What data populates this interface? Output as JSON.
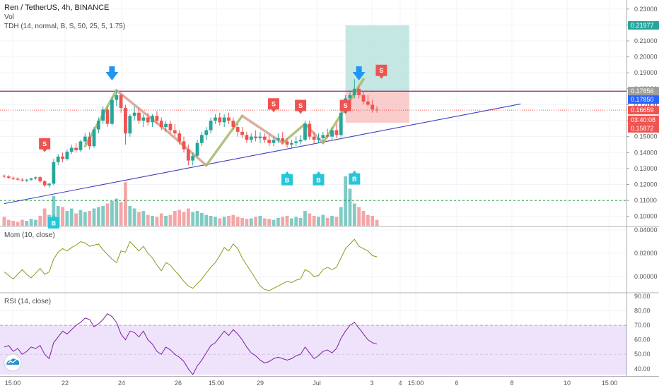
{
  "legend": {
    "main": "Ren / TetherUS, 4h, BINANCE",
    "vol": "Vol",
    "tdh": "TDH (14, normal, B, S, 50, 25, 5, 1.75)",
    "mom": "Mom (10, close)",
    "rsi": "RSI (14, close)"
  },
  "colors": {
    "up": "#26a69a",
    "down": "#ef5350",
    "zigzag_up": "#a4b86a",
    "zigzag_down": "#d6a08e",
    "trend": "#3d3dbf",
    "resistance": "#8e2a6a",
    "sell_tag": "#ef5350",
    "buy_tag": "#26c6da",
    "arrow": "#2196f3",
    "mom_line": "#8a9a1a",
    "rsi_line": "#7b1fa2",
    "rsi_band": "#efe3fb"
  },
  "price_axis": [
    "0.23000",
    "0.22000",
    "0.21000",
    "0.20000",
    "0.19000",
    "0.18000",
    "0.17000",
    "0.16000",
    "0.15000",
    "0.14000",
    "0.13000",
    "0.12000",
    "0.11000",
    "0.10000"
  ],
  "price_tags": [
    {
      "text": "0.21977",
      "color": "#26a69a",
      "value": 0.21977
    },
    {
      "text": "0.17856",
      "color": "#9e9e9e",
      "value": 0.17856
    },
    {
      "text": "0.17850",
      "color": "#2962ff",
      "value": 0.1785
    },
    {
      "text": "0.16659",
      "color": "#ef5350",
      "value": 0.16659
    },
    {
      "text": "03:40:08",
      "color": "#ef5350",
      "value": 0.1605
    },
    {
      "text": "0.15872",
      "color": "#ef5350",
      "value": 0.15872
    }
  ],
  "mom_axis": [
    "0.04000",
    "0.02000",
    "0.00000"
  ],
  "rsi_axis": [
    "90.00",
    "80.00",
    "70.00",
    "60.00",
    "50.00",
    "40.00"
  ],
  "time_axis": [
    "15:00",
    "22",
    "24",
    "26",
    "15:00",
    "29",
    "Jul",
    "3",
    "4",
    "15:00",
    "6",
    "8",
    "10",
    "15:00"
  ],
  "signals": {
    "sell_label": "S",
    "buy_label": "B"
  },
  "chart_data": {
    "type": "candlestick",
    "candles": [
      [
        0.1255,
        0.1262,
        0.124,
        0.125
      ],
      [
        0.125,
        0.1258,
        0.1235,
        0.1242
      ],
      [
        0.1242,
        0.125,
        0.1228,
        0.1236
      ],
      [
        0.1236,
        0.1245,
        0.1225,
        0.123
      ],
      [
        0.123,
        0.124,
        0.1218,
        0.1225
      ],
      [
        0.1225,
        0.1235,
        0.1215,
        0.123
      ],
      [
        0.123,
        0.1242,
        0.1222,
        0.1238
      ],
      [
        0.1238,
        0.125,
        0.123,
        0.1245
      ],
      [
        0.1245,
        0.1255,
        0.121,
        0.122
      ],
      [
        0.122,
        0.1228,
        0.1185,
        0.1195
      ],
      [
        0.1195,
        0.121,
        0.118,
        0.1205
      ],
      [
        0.1205,
        0.136,
        0.1195,
        0.134
      ],
      [
        0.134,
        0.139,
        0.132,
        0.1375
      ],
      [
        0.1375,
        0.14,
        0.134,
        0.136
      ],
      [
        0.136,
        0.142,
        0.135,
        0.1405
      ],
      [
        0.1405,
        0.145,
        0.139,
        0.143
      ],
      [
        0.143,
        0.146,
        0.14,
        0.1415
      ],
      [
        0.1415,
        0.148,
        0.1405,
        0.147
      ],
      [
        0.147,
        0.152,
        0.1455,
        0.15
      ],
      [
        0.15,
        0.153,
        0.142,
        0.144
      ],
      [
        0.144,
        0.156,
        0.143,
        0.1545
      ],
      [
        0.1545,
        0.162,
        0.152,
        0.16
      ],
      [
        0.16,
        0.169,
        0.158,
        0.167
      ],
      [
        0.167,
        0.169,
        0.156,
        0.158
      ],
      [
        0.158,
        0.175,
        0.157,
        0.173
      ],
      [
        0.173,
        0.179,
        0.169,
        0.176
      ],
      [
        0.176,
        0.177,
        0.165,
        0.168
      ],
      [
        0.168,
        0.17,
        0.145,
        0.152
      ],
      [
        0.152,
        0.164,
        0.15,
        0.163
      ],
      [
        0.163,
        0.169,
        0.16,
        0.165
      ],
      [
        0.165,
        0.168,
        0.158,
        0.16
      ],
      [
        0.16,
        0.164,
        0.156,
        0.162
      ],
      [
        0.162,
        0.165,
        0.157,
        0.159
      ],
      [
        0.159,
        0.164,
        0.156,
        0.163
      ],
      [
        0.163,
        0.166,
        0.158,
        0.16
      ],
      [
        0.16,
        0.162,
        0.154,
        0.156
      ],
      [
        0.156,
        0.16,
        0.153,
        0.158
      ],
      [
        0.158,
        0.16,
        0.152,
        0.154
      ],
      [
        0.154,
        0.158,
        0.15,
        0.152
      ],
      [
        0.152,
        0.154,
        0.145,
        0.147
      ],
      [
        0.147,
        0.15,
        0.14,
        0.142
      ],
      [
        0.142,
        0.145,
        0.132,
        0.135
      ],
      [
        0.135,
        0.14,
        0.132,
        0.138
      ],
      [
        0.138,
        0.148,
        0.137,
        0.146
      ],
      [
        0.146,
        0.153,
        0.144,
        0.151
      ],
      [
        0.151,
        0.156,
        0.148,
        0.154
      ],
      [
        0.154,
        0.162,
        0.152,
        0.16
      ],
      [
        0.16,
        0.164,
        0.158,
        0.162
      ],
      [
        0.162,
        0.165,
        0.157,
        0.159
      ],
      [
        0.159,
        0.164,
        0.156,
        0.162
      ],
      [
        0.162,
        0.165,
        0.158,
        0.16
      ],
      [
        0.16,
        0.162,
        0.154,
        0.156
      ],
      [
        0.156,
        0.158,
        0.15,
        0.153
      ],
      [
        0.153,
        0.156,
        0.149,
        0.151
      ],
      [
        0.151,
        0.153,
        0.146,
        0.148
      ],
      [
        0.148,
        0.152,
        0.146,
        0.15
      ],
      [
        0.15,
        0.154,
        0.147,
        0.149
      ],
      [
        0.149,
        0.153,
        0.146,
        0.15
      ],
      [
        0.15,
        0.152,
        0.146,
        0.148
      ],
      [
        0.148,
        0.151,
        0.144,
        0.146
      ],
      [
        0.146,
        0.15,
        0.144,
        0.148
      ],
      [
        0.148,
        0.152,
        0.146,
        0.149
      ],
      [
        0.149,
        0.153,
        0.145,
        0.147
      ],
      [
        0.147,
        0.149,
        0.143,
        0.145
      ],
      [
        0.145,
        0.148,
        0.143,
        0.146
      ],
      [
        0.146,
        0.15,
        0.144,
        0.147
      ],
      [
        0.147,
        0.151,
        0.145,
        0.148
      ],
      [
        0.148,
        0.16,
        0.147,
        0.158
      ],
      [
        0.158,
        0.16,
        0.148,
        0.15
      ],
      [
        0.15,
        0.153,
        0.146,
        0.148
      ],
      [
        0.148,
        0.152,
        0.146,
        0.149
      ],
      [
        0.149,
        0.153,
        0.147,
        0.151
      ],
      [
        0.151,
        0.155,
        0.149,
        0.15
      ],
      [
        0.15,
        0.156,
        0.148,
        0.154
      ],
      [
        0.154,
        0.158,
        0.149,
        0.151
      ],
      [
        0.151,
        0.168,
        0.15,
        0.165
      ],
      [
        0.165,
        0.176,
        0.164,
        0.174
      ],
      [
        0.174,
        0.179,
        0.17,
        0.176
      ],
      [
        0.176,
        0.186,
        0.174,
        0.18
      ],
      [
        0.18,
        0.182,
        0.174,
        0.176
      ],
      [
        0.176,
        0.178,
        0.17,
        0.172
      ],
      [
        0.172,
        0.176,
        0.169,
        0.17
      ],
      [
        0.17,
        0.173,
        0.165,
        0.167
      ],
      [
        0.167,
        0.169,
        0.165,
        0.1666
      ]
    ],
    "volume": [
      0.18,
      0.12,
      0.1,
      0.08,
      0.12,
      0.1,
      0.14,
      0.12,
      0.2,
      0.35,
      0.22,
      0.6,
      0.4,
      0.38,
      0.3,
      0.35,
      0.25,
      0.32,
      0.28,
      0.3,
      0.35,
      0.38,
      0.4,
      0.45,
      0.5,
      0.55,
      0.48,
      0.88,
      0.4,
      0.35,
      0.28,
      0.3,
      0.22,
      0.2,
      0.18,
      0.25,
      0.2,
      0.22,
      0.3,
      0.32,
      0.28,
      0.35,
      0.28,
      0.3,
      0.26,
      0.22,
      0.2,
      0.18,
      0.15,
      0.18,
      0.2,
      0.22,
      0.18,
      0.16,
      0.14,
      0.15,
      0.18,
      0.2,
      0.15,
      0.14,
      0.12,
      0.16,
      0.18,
      0.2,
      0.15,
      0.18,
      0.16,
      0.3,
      0.25,
      0.2,
      0.18,
      0.22,
      0.16,
      0.2,
      0.18,
      0.38,
      1.0,
      0.75,
      0.45,
      0.38,
      0.3,
      0.22,
      0.2,
      0.12
    ],
    "momentum": [
      0.004,
      0.001,
      -0.002,
      0.002,
      0.006,
      0.002,
      -0.001,
      0.003,
      0.007,
      0.002,
      0.004,
      0.015,
      0.021,
      0.024,
      0.022,
      0.025,
      0.027,
      0.03,
      0.029,
      0.026,
      0.027,
      0.028,
      0.023,
      0.019,
      0.015,
      0.012,
      0.022,
      0.021,
      0.03,
      0.026,
      0.022,
      0.026,
      0.02,
      0.016,
      0.01,
      0.005,
      0.012,
      0.01,
      0.005,
      0.001,
      -0.004,
      -0.008,
      -0.01,
      -0.006,
      -0.002,
      0.003,
      0.008,
      0.012,
      0.018,
      0.025,
      0.022,
      0.028,
      0.024,
      0.016,
      0.01,
      0.004,
      -0.002,
      -0.008,
      -0.011,
      -0.012,
      -0.01,
      -0.008,
      -0.006,
      -0.004,
      -0.005,
      -0.003,
      -0.002,
      0.006,
      0.004,
      0.0,
      0.001,
      0.006,
      0.008,
      0.006,
      0.008,
      0.016,
      0.024,
      0.028,
      0.032,
      0.026,
      0.024,
      0.022,
      0.018,
      0.017
    ],
    "rsi": [
      55,
      56,
      52,
      54,
      50,
      52,
      55,
      54,
      56,
      50,
      47,
      58,
      62,
      66,
      64,
      67,
      70,
      72,
      75,
      74,
      69,
      71,
      74,
      78,
      76,
      72,
      64,
      60,
      66,
      65,
      62,
      66,
      60,
      57,
      52,
      50,
      55,
      53,
      50,
      48,
      45,
      40,
      36,
      42,
      46,
      51,
      56,
      58,
      62,
      66,
      63,
      67,
      64,
      60,
      55,
      51,
      49,
      46,
      44,
      45,
      47,
      48,
      47,
      46,
      47,
      49,
      50,
      55,
      51,
      47,
      49,
      52,
      53,
      51,
      54,
      61,
      66,
      70,
      72,
      68,
      64,
      60,
      58,
      57
    ],
    "mom_range": [
      -0.012,
      0.04
    ],
    "rsi_range": [
      36,
      90
    ],
    "rsi_band": [
      50,
      70
    ],
    "price_range": [
      0.095,
      0.233
    ],
    "resistance": 0.1785,
    "support_dotted": 0.11,
    "last_price": 0.16659,
    "long_position": {
      "target": 0.21977,
      "entry": 0.17856,
      "stop": 0.15872,
      "start_index": 76,
      "end_index": 88
    },
    "trendline": {
      "start": [
        0,
        0.108
      ],
      "end": [
        115,
        0.1705
      ]
    },
    "zigzag": [
      [
        18,
        0.144
      ],
      [
        25,
        0.179
      ],
      [
        36,
        0.154
      ],
      [
        45,
        0.132
      ],
      [
        53,
        0.163
      ],
      [
        62,
        0.146
      ],
      [
        67,
        0.158
      ],
      [
        71,
        0.146
      ],
      [
        80,
        0.186
      ]
    ],
    "sell_signals": [
      [
        9,
        0.142
      ],
      [
        60,
        0.167
      ],
      [
        66,
        0.166
      ],
      [
        76,
        0.166
      ],
      [
        84,
        0.188
      ]
    ],
    "buy_signals": [
      [
        11,
        0.0995
      ],
      [
        63,
        0.1265
      ],
      [
        70,
        0.1265
      ],
      [
        78,
        0.127
      ]
    ],
    "arrows": [
      24,
      79
    ]
  }
}
